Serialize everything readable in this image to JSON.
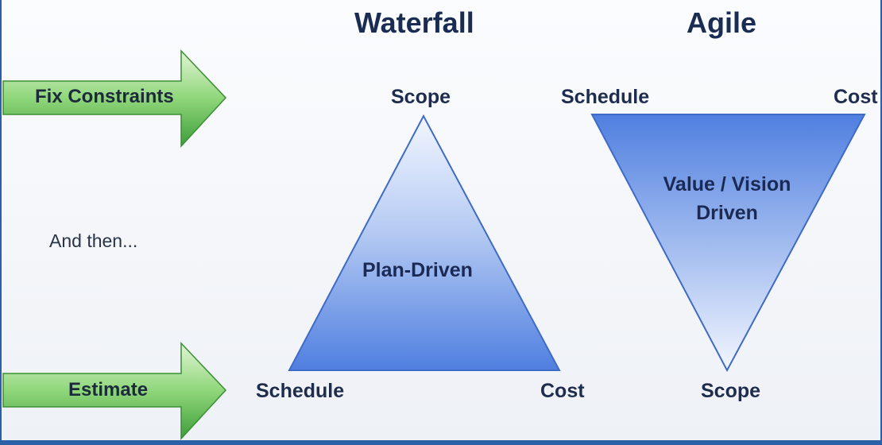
{
  "headings": {
    "waterfall": "Waterfall",
    "agile": "Agile"
  },
  "arrows": {
    "top": "Fix Constraints",
    "bottom": "Estimate"
  },
  "middle_note": "And then...",
  "waterfall": {
    "top_label": "Scope",
    "bottom_left_label": "Schedule",
    "bottom_right_label": "Cost",
    "center_label": "Plan-Driven"
  },
  "agile": {
    "top_left_label": "Schedule",
    "top_right_label": "Cost",
    "bottom_label": "Scope",
    "center_line1": "Value / Vision",
    "center_line2": "Driven"
  },
  "colors": {
    "arrow_green_light": "#d9f2cc",
    "arrow_green_dark": "#4fb048",
    "triangle_blue_light": "#eef3ff",
    "triangle_blue_dark": "#4f7fe0",
    "frame_blue": "#2b5fa6"
  }
}
